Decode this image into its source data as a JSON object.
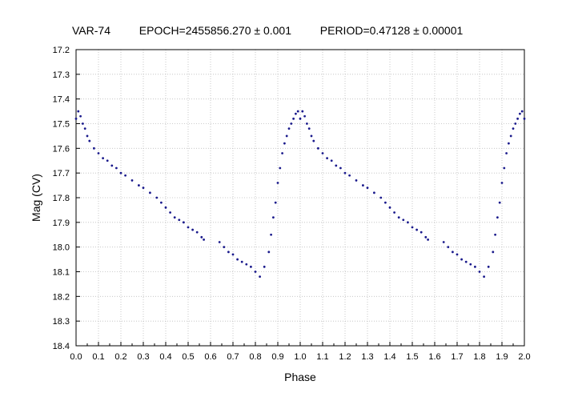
{
  "header": {
    "star": "VAR-74",
    "epoch": "EPOCH=2455856.270 ± 0.001",
    "period": "PERIOD=0.47128 ± 0.00001"
  },
  "chart_data": {
    "type": "scatter",
    "title": "",
    "xlabel": "Phase",
    "ylabel": "Mag (CV)",
    "xlim": [
      0.0,
      2.0
    ],
    "ylim": [
      17.2,
      18.4
    ],
    "y_inverted": true,
    "grid": true,
    "marker_color": "#1a1a8c",
    "x_ticks": [
      "0.0",
      "0.1",
      "0.2",
      "0.3",
      "0.4",
      "0.5",
      "0.6",
      "0.7",
      "0.8",
      "0.9",
      "1.0",
      "1.1",
      "1.2",
      "1.3",
      "1.4",
      "1.5",
      "1.6",
      "1.7",
      "1.8",
      "1.9",
      "2.0"
    ],
    "y_ticks": [
      "17.2",
      "17.3",
      "17.4",
      "17.5",
      "17.6",
      "17.7",
      "17.8",
      "17.9",
      "18.0",
      "18.1",
      "18.2",
      "18.3",
      "18.4"
    ],
    "series": [
      {
        "x": [
          0.0,
          0.01,
          0.02,
          0.03,
          0.04,
          0.05,
          0.06,
          0.08,
          0.1,
          0.12,
          0.14,
          0.16,
          0.18,
          0.2,
          0.22,
          0.25,
          0.28,
          0.3,
          0.33,
          0.36,
          0.38,
          0.4,
          0.42,
          0.44,
          0.46,
          0.48,
          0.5,
          0.52,
          0.54,
          0.56,
          0.57,
          0.64,
          0.66,
          0.68,
          0.7,
          0.72,
          0.74,
          0.76,
          0.78,
          0.8,
          0.82,
          0.84,
          0.86,
          0.87,
          0.88,
          0.89,
          0.9,
          0.91,
          0.92,
          0.93,
          0.94,
          0.95,
          0.96,
          0.97,
          0.98,
          0.99,
          1.0,
          1.01,
          1.02,
          1.03,
          1.04,
          1.05,
          1.06,
          1.08,
          1.1,
          1.12,
          1.14,
          1.16,
          1.18,
          1.2,
          1.22,
          1.25,
          1.28,
          1.3,
          1.33,
          1.36,
          1.38,
          1.4,
          1.42,
          1.44,
          1.46,
          1.48,
          1.5,
          1.52,
          1.54,
          1.56,
          1.57,
          1.64,
          1.66,
          1.68,
          1.7,
          1.72,
          1.74,
          1.76,
          1.78,
          1.8,
          1.82,
          1.84,
          1.86,
          1.87,
          1.88,
          1.89,
          1.9,
          1.91,
          1.92,
          1.93,
          1.94,
          1.95,
          1.96,
          1.97,
          1.98,
          1.99,
          2.0
        ],
        "y": [
          17.48,
          17.45,
          17.47,
          17.5,
          17.52,
          17.55,
          17.57,
          17.6,
          17.62,
          17.64,
          17.65,
          17.67,
          17.68,
          17.7,
          17.71,
          17.73,
          17.75,
          17.76,
          17.78,
          17.8,
          17.82,
          17.84,
          17.86,
          17.88,
          17.89,
          17.9,
          17.92,
          17.93,
          17.94,
          17.96,
          17.97,
          17.98,
          18.0,
          18.02,
          18.03,
          18.05,
          18.06,
          18.07,
          18.08,
          18.1,
          18.12,
          18.08,
          18.02,
          17.95,
          17.88,
          17.82,
          17.74,
          17.68,
          17.62,
          17.58,
          17.55,
          17.52,
          17.5,
          17.48,
          17.46,
          17.45,
          17.48,
          17.45,
          17.47,
          17.5,
          17.52,
          17.55,
          17.57,
          17.6,
          17.62,
          17.64,
          17.65,
          17.67,
          17.68,
          17.7,
          17.71,
          17.73,
          17.75,
          17.76,
          17.78,
          17.8,
          17.82,
          17.84,
          17.86,
          17.88,
          17.89,
          17.9,
          17.92,
          17.93,
          17.94,
          17.96,
          17.97,
          17.98,
          18.0,
          18.02,
          18.03,
          18.05,
          18.06,
          18.07,
          18.08,
          18.1,
          18.12,
          18.08,
          18.02,
          17.95,
          17.88,
          17.82,
          17.74,
          17.68,
          17.62,
          17.58,
          17.55,
          17.52,
          17.5,
          17.48,
          17.46,
          17.45,
          17.48
        ]
      }
    ]
  }
}
